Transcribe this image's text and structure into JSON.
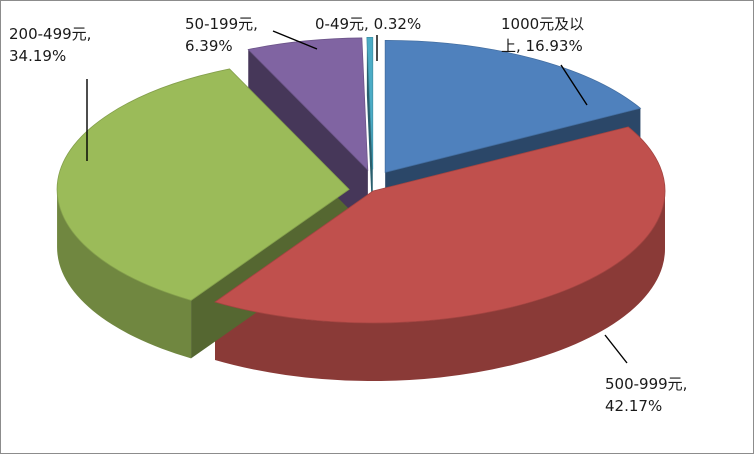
{
  "chart_data": {
    "type": "pie",
    "title": "",
    "slices": [
      {
        "label": "1000元及以上",
        "value": 16.93,
        "label_text": [
          "1000元及以",
          "上, 16.93%"
        ],
        "color": "#4F81BD"
      },
      {
        "label": "500-999元",
        "value": 42.17,
        "label_text": [
          "500-999元,",
          "42.17%"
        ],
        "color": "#C0504D"
      },
      {
        "label": "200-499元",
        "value": 34.19,
        "label_text": [
          "200-499元,",
          "34.19%"
        ],
        "color": "#9BBB59"
      },
      {
        "label": "50-199元",
        "value": 6.39,
        "label_text": [
          "50-199元,",
          "6.39%"
        ],
        "color": "#8064A2"
      },
      {
        "label": "0-49元",
        "value": 0.32,
        "label_text": [
          "0-49元, 0.32%"
        ],
        "color": "#4BACC6"
      }
    ],
    "legend": "none"
  }
}
